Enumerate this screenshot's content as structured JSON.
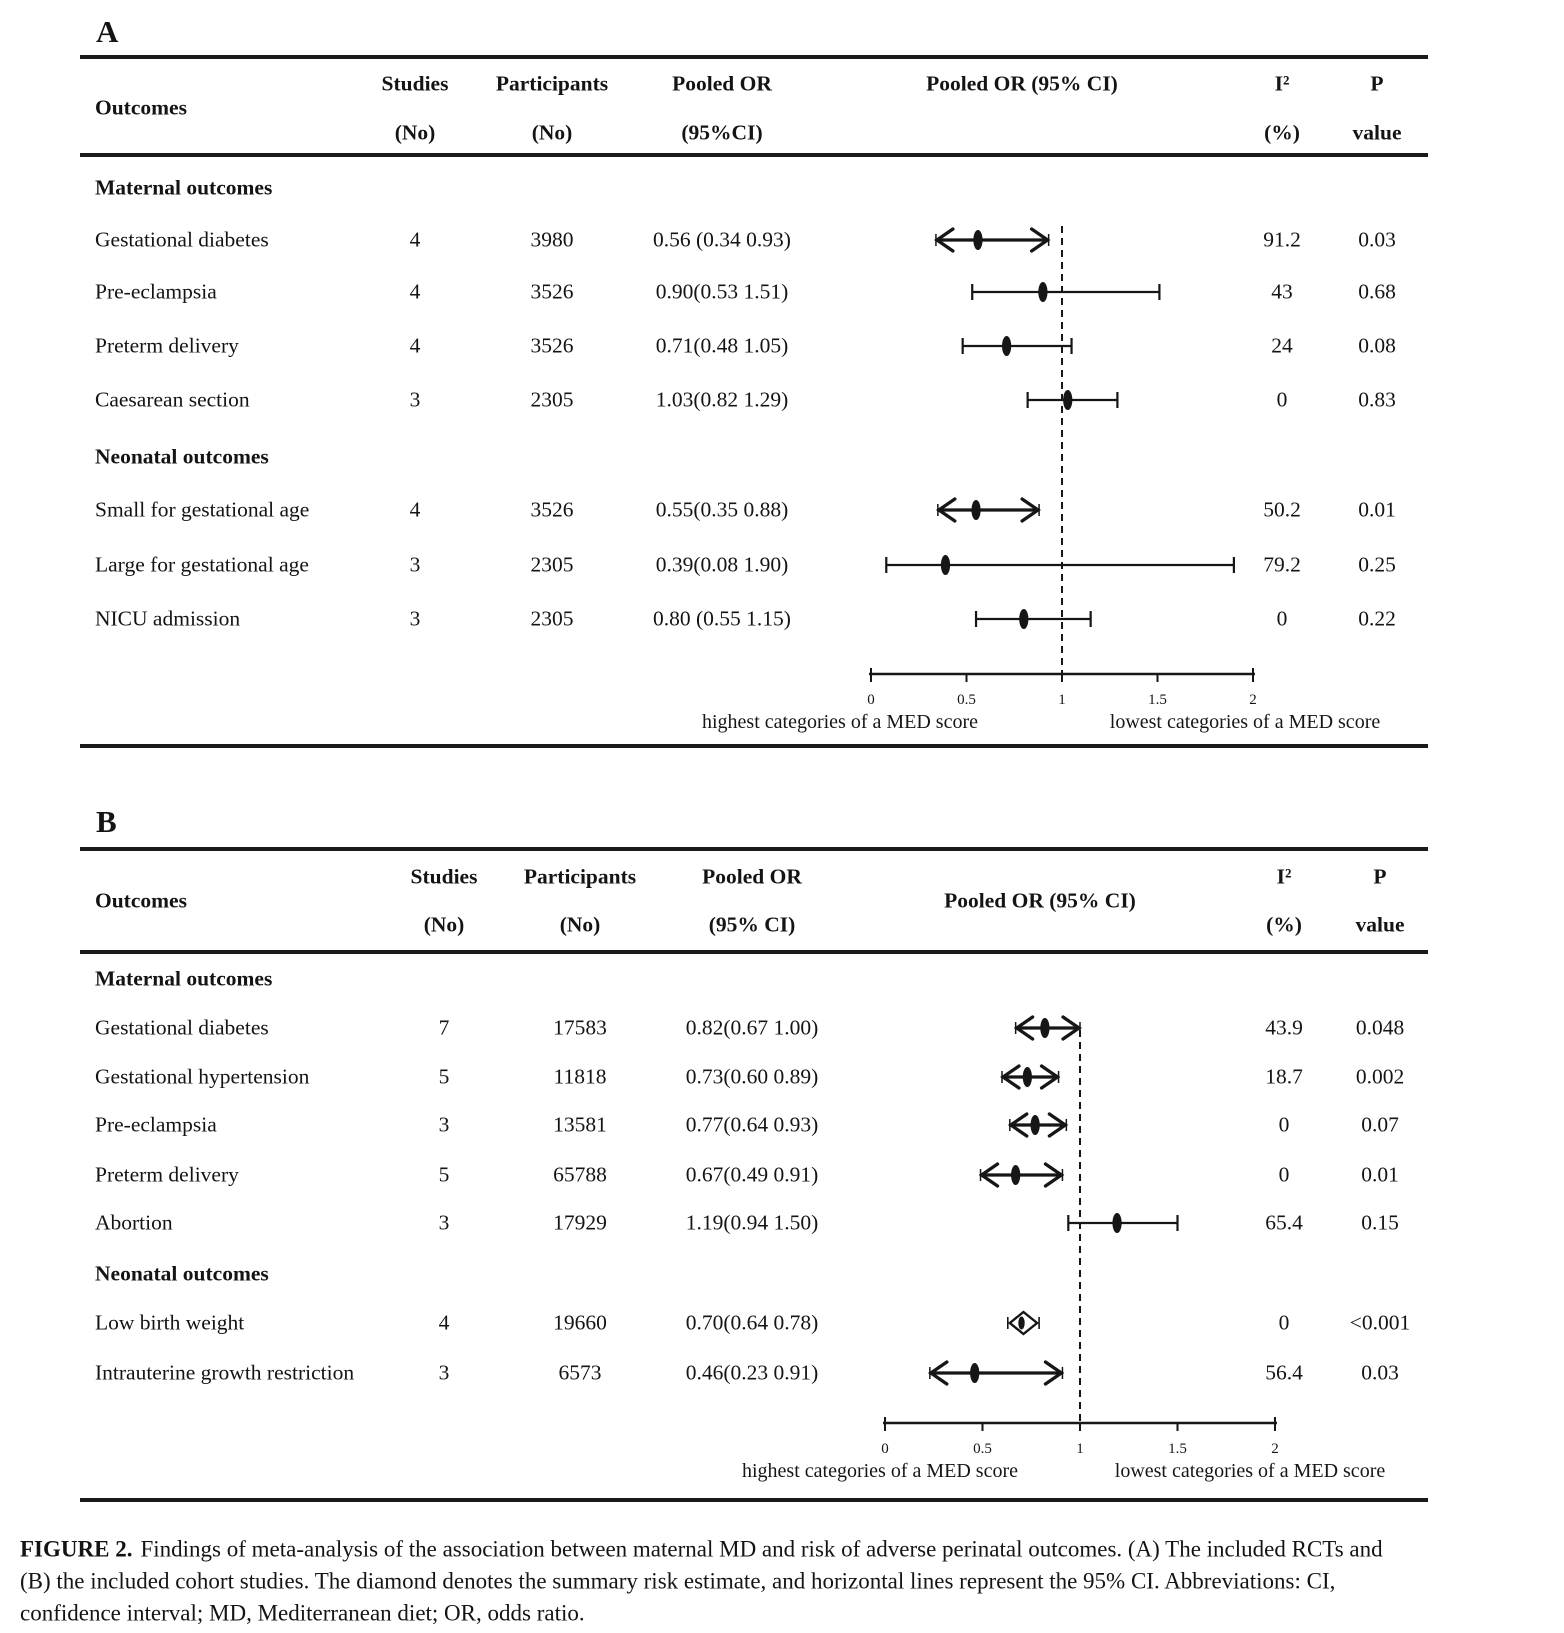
{
  "page": {
    "background": "#ffffff",
    "ink": "#161616"
  },
  "caption": {
    "label": "FIGURE 2.",
    "line1": "Findings of meta-analysis of the association between maternal MD and risk of adverse perinatal outcomes. (A) The included RCTs and",
    "line2": "(B) the included cohort studies. The diamond denotes the summary risk estimate, and horizontal lines represent the 95% CI. Abbreviations: CI,",
    "line3": "confidence interval; MD, Mediterranean diet; OR, odds ratio."
  },
  "panels": [
    {
      "label": "A",
      "header": {
        "outcomes": "Outcomes",
        "studies_1": "Studies",
        "studies_2": "(No)",
        "participants_1": "Participants",
        "participants_2": "(No)",
        "pooled_1": "Pooled OR",
        "pooled_2": "(95%CI)",
        "plot": "Pooled OR (95% CI)",
        "i2_1": "I²",
        "i2_2": "(%)",
        "p_1": "P",
        "p_2": "value"
      },
      "rows": [
        {
          "type": "section",
          "outcome": "Maternal outcomes"
        },
        {
          "type": "data",
          "outcome": "Gestational diabetes",
          "studies": "4",
          "participants": "3980",
          "pooled": "0.56 (0.34 0.93)",
          "i2": "91.2",
          "p": "0.03",
          "or": 0.56,
          "lo": 0.34,
          "hi": 0.93,
          "style": "arrow"
        },
        {
          "type": "data",
          "outcome": "Pre-eclampsia",
          "studies": "4",
          "participants": "3526",
          "pooled": "0.90(0.53 1.51)",
          "i2": "43",
          "p": "0.68",
          "or": 0.9,
          "lo": 0.53,
          "hi": 1.51,
          "style": "cap"
        },
        {
          "type": "data",
          "outcome": "Preterm delivery",
          "studies": "4",
          "participants": "3526",
          "pooled": "0.71(0.48 1.05)",
          "i2": "24",
          "p": "0.08",
          "or": 0.71,
          "lo": 0.48,
          "hi": 1.05,
          "style": "cap"
        },
        {
          "type": "data",
          "outcome": "Caesarean section",
          "studies": "3",
          "participants": "2305",
          "pooled": "1.03(0.82 1.29)",
          "i2": "0",
          "p": "0.83",
          "or": 1.03,
          "lo": 0.82,
          "hi": 1.29,
          "style": "cap"
        },
        {
          "type": "section",
          "outcome": "Neonatal outcomes"
        },
        {
          "type": "data",
          "outcome": "Small for gestational age",
          "studies": "4",
          "participants": "3526",
          "pooled": "0.55(0.35 0.88)",
          "i2": "50.2",
          "p": "0.01",
          "or": 0.55,
          "lo": 0.35,
          "hi": 0.88,
          "style": "arrow"
        },
        {
          "type": "data",
          "outcome": "Large for gestational age",
          "studies": "3",
          "participants": "2305",
          "pooled": "0.39(0.08 1.90)",
          "i2": "79.2",
          "p": "0.25",
          "or": 0.39,
          "lo": 0.08,
          "hi": 1.9,
          "style": "cap"
        },
        {
          "type": "data",
          "outcome": "NICU admission",
          "studies": "3",
          "participants": "2305",
          "pooled": "0.80 (0.55 1.15)",
          "i2": "0",
          "p": "0.22",
          "or": 0.8,
          "lo": 0.55,
          "hi": 1.15,
          "style": "cap"
        }
      ],
      "axis": {
        "tick_values": [
          0,
          0.5,
          1,
          1.5,
          2
        ],
        "tick_labels": [
          "0",
          "0.5",
          "1",
          "1.5",
          "2"
        ],
        "reference_value": 1,
        "left_caption": "highest categories of a MED score",
        "right_caption": "lowest categories of a MED score"
      }
    },
    {
      "label": "B",
      "header": {
        "outcomes": "Outcomes",
        "studies_1": "Studies",
        "studies_2": "(No)",
        "participants_1": "Participants",
        "participants_2": "(No)",
        "pooled_1": "Pooled OR",
        "pooled_2": "(95% CI)",
        "plot": "Pooled OR (95% CI)",
        "i2_1": "I²",
        "i2_2": "(%)",
        "p_1": "P",
        "p_2": "value"
      },
      "rows": [
        {
          "type": "section",
          "outcome": "Maternal outcomes"
        },
        {
          "type": "data",
          "outcome": "Gestational diabetes",
          "studies": "7",
          "participants": "17583",
          "pooled": "0.82(0.67 1.00)",
          "i2": "43.9",
          "p": "0.048",
          "or": 0.82,
          "lo": 0.67,
          "hi": 1.0,
          "style": "arrow"
        },
        {
          "type": "data",
          "outcome": "Gestational hypertension",
          "studies": "5",
          "participants": "11818",
          "pooled": "0.73(0.60 0.89)",
          "i2": "18.7",
          "p": "0.002",
          "or": 0.73,
          "lo": 0.6,
          "hi": 0.89,
          "style": "arrow"
        },
        {
          "type": "data",
          "outcome": "Pre-eclampsia",
          "studies": "3",
          "participants": "13581",
          "pooled": "0.77(0.64 0.93)",
          "i2": "0",
          "p": "0.07",
          "or": 0.77,
          "lo": 0.64,
          "hi": 0.93,
          "style": "arrow"
        },
        {
          "type": "data",
          "outcome": "Preterm delivery",
          "studies": "5",
          "participants": "65788",
          "pooled": "0.67(0.49 0.91)",
          "i2": "0",
          "p": "0.01",
          "or": 0.67,
          "lo": 0.49,
          "hi": 0.91,
          "style": "arrow"
        },
        {
          "type": "data",
          "outcome": "Abortion",
          "studies": "3",
          "participants": "17929",
          "pooled": "1.19(0.94 1.50)",
          "i2": "65.4",
          "p": "0.15",
          "or": 1.19,
          "lo": 0.94,
          "hi": 1.5,
          "style": "cap"
        },
        {
          "type": "section",
          "outcome": "Neonatal outcomes"
        },
        {
          "type": "data",
          "outcome": "Low birth weight",
          "studies": "4",
          "participants": "19660",
          "pooled": "0.70(0.64 0.78)",
          "i2": "0",
          "p": "<0.001",
          "or": 0.7,
          "lo": 0.64,
          "hi": 0.78,
          "style": "diamond"
        },
        {
          "type": "data",
          "outcome": "Intrauterine growth restriction",
          "studies": "3",
          "participants": "6573",
          "pooled": "0.46(0.23 0.91)",
          "i2": "56.4",
          "p": "0.03",
          "or": 0.46,
          "lo": 0.23,
          "hi": 0.91,
          "style": "arrow"
        }
      ],
      "axis": {
        "tick_values": [
          0,
          0.5,
          1,
          1.5,
          2
        ],
        "tick_labels": [
          "0",
          "0.5",
          "1",
          "1.5",
          "2"
        ],
        "reference_value": 1,
        "left_caption": "highest categories of a MED score",
        "right_caption": "lowest categories of a MED score"
      }
    }
  ],
  "chart_data": [
    {
      "type": "forest",
      "title": "A — included RCTs: Pooled OR (95% CI)",
      "categories": [
        "Gestational diabetes",
        "Pre-eclampsia",
        "Preterm delivery",
        "Caesarean section",
        "Small for gestational age",
        "Large for gestational age",
        "NICU admission"
      ],
      "groups": [
        "Maternal outcomes",
        "Maternal outcomes",
        "Maternal outcomes",
        "Maternal outcomes",
        "Neonatal outcomes",
        "Neonatal outcomes",
        "Neonatal outcomes"
      ],
      "pooled_or": [
        0.56,
        0.9,
        0.71,
        1.03,
        0.55,
        0.39,
        0.8
      ],
      "ci_low": [
        0.34,
        0.53,
        0.48,
        0.82,
        0.35,
        0.08,
        0.55
      ],
      "ci_high": [
        0.93,
        1.51,
        1.05,
        1.29,
        0.88,
        1.9,
        1.15
      ],
      "studies_no": [
        4,
        4,
        4,
        3,
        4,
        3,
        3
      ],
      "participants_no": [
        3980,
        3526,
        3526,
        2305,
        3526,
        2305,
        2305
      ],
      "i_squared_pct": [
        91.2,
        43,
        24,
        0,
        50.2,
        79.2,
        0
      ],
      "p_value": [
        "0.03",
        "0.68",
        "0.08",
        "0.83",
        "0.01",
        "0.25",
        "0.22"
      ],
      "xlim": [
        0,
        2
      ],
      "x_ticks": [
        0,
        0.5,
        1,
        1.5,
        2
      ],
      "reference_line": 1,
      "xlabel_left": "highest categories of a MED score",
      "xlabel_right": "lowest categories of a MED score",
      "grid": false,
      "legend": false
    },
    {
      "type": "forest",
      "title": "B — included cohort studies: Pooled OR (95% CI)",
      "categories": [
        "Gestational diabetes",
        "Gestational hypertension",
        "Pre-eclampsia",
        "Preterm delivery",
        "Abortion",
        "Low birth weight",
        "Intrauterine growth restriction"
      ],
      "groups": [
        "Maternal outcomes",
        "Maternal outcomes",
        "Maternal outcomes",
        "Maternal outcomes",
        "Maternal outcomes",
        "Neonatal outcomes",
        "Neonatal outcomes"
      ],
      "pooled_or": [
        0.82,
        0.73,
        0.77,
        0.67,
        1.19,
        0.7,
        0.46
      ],
      "ci_low": [
        0.67,
        0.6,
        0.64,
        0.49,
        0.94,
        0.64,
        0.23
      ],
      "ci_high": [
        1.0,
        0.89,
        0.93,
        0.91,
        1.5,
        0.78,
        0.91
      ],
      "studies_no": [
        7,
        5,
        3,
        5,
        3,
        4,
        3
      ],
      "participants_no": [
        17583,
        11818,
        13581,
        65788,
        17929,
        19660,
        6573
      ],
      "i_squared_pct": [
        43.9,
        18.7,
        0,
        0,
        65.4,
        0,
        56.4
      ],
      "p_value": [
        "0.048",
        "0.002",
        "0.07",
        "0.01",
        "0.15",
        "<0.001",
        "0.03"
      ],
      "xlim": [
        0,
        2
      ],
      "x_ticks": [
        0,
        0.5,
        1,
        1.5,
        2
      ],
      "reference_line": 1,
      "xlabel_left": "highest categories of a MED score",
      "xlabel_right": "lowest categories of a MED score",
      "grid": false,
      "legend": false
    }
  ]
}
